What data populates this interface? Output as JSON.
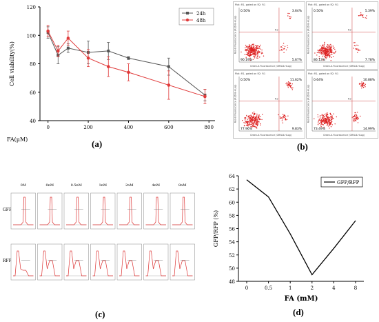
{
  "captions": {
    "a": "(a)",
    "b": "(b)",
    "c": "(c)",
    "d": "(d)"
  },
  "chart_data": [
    {
      "id": "a",
      "type": "line",
      "xlabel": "FA(μM)",
      "ylabel": "Cell viability(%)",
      "xlim": [
        -40,
        830
      ],
      "ylim": [
        40,
        120
      ],
      "xticks": [
        0,
        200,
        400,
        600,
        800
      ],
      "yticks": [
        40,
        60,
        80,
        100,
        120
      ],
      "legend_position": "top-right",
      "series": [
        {
          "name": "24h",
          "color": "#555555",
          "marker": "square",
          "x": [
            0,
            50,
            100,
            200,
            300,
            400,
            600,
            780
          ],
          "y": [
            102,
            86,
            91,
            88,
            89,
            84,
            78,
            58
          ],
          "err": [
            4,
            6,
            3,
            8,
            6,
            1,
            6,
            4
          ]
        },
        {
          "name": "48h",
          "color": "#e03a3a",
          "marker": "circle",
          "x": [
            0,
            50,
            100,
            200,
            300,
            400,
            600,
            780
          ],
          "y": [
            103,
            89,
            98,
            84,
            78,
            74,
            65,
            57
          ],
          "err": [
            4,
            4,
            5,
            6,
            7,
            6,
            10,
            5
          ]
        }
      ]
    },
    {
      "id": "b",
      "type": "scatter",
      "panels": [
        {
          "header": "Plot: R1, gated on R2: R1",
          "q_ul": "0.50%",
          "q_ur": "3.64%",
          "q_ll": "90.19%",
          "q_lr": "5.67%",
          "center": "R2"
        },
        {
          "header": "Plot: R1, gated on R2: R1",
          "q_ul": "0.50%",
          "q_ur": "5.39%",
          "q_ll": "86.13%",
          "q_lr": "7.78%",
          "center": "R2"
        },
        {
          "header": "Plot: R1, gated on R2: R1",
          "q_ul": "0.50%",
          "q_ur": "11.62%",
          "q_ll": "77.96%",
          "q_lr": "9.83%",
          "center": "R2"
        },
        {
          "header": "Plot: R1, gated on R2: R1",
          "q_ul": "0.64%",
          "q_ur": "10.88%",
          "q_ll": "73.49%",
          "q_lr": "14.99%",
          "center": "R2"
        }
      ],
      "xlabel": "Green-A Fluorescence (GRN-B-HLog)",
      "ylabel": "Red-B Fluorescence (RED-B-HLog)"
    },
    {
      "id": "c",
      "type": "histogram-grid",
      "columns": [
        "0M",
        "0nM",
        "0.5nM",
        "1nM",
        "2nM",
        "4nM",
        "8nM"
      ],
      "rows": [
        "GFP",
        "RFP"
      ]
    },
    {
      "id": "d",
      "type": "line",
      "xlabel": "FA (mM)",
      "ylabel": "GFP/RFP (%)",
      "categories": [
        "0",
        "0.5",
        "1",
        "2",
        "4",
        "8"
      ],
      "ylim": [
        48,
        64
      ],
      "yticks": [
        48,
        50,
        52,
        54,
        56,
        58,
        60,
        62,
        64
      ],
      "legend_position": "top-right",
      "series": [
        {
          "name": "GFP/RFP",
          "color": "#000000",
          "values": [
            63.4,
            60.8,
            55.2,
            49.0,
            53.0,
            57.2
          ]
        }
      ]
    }
  ]
}
